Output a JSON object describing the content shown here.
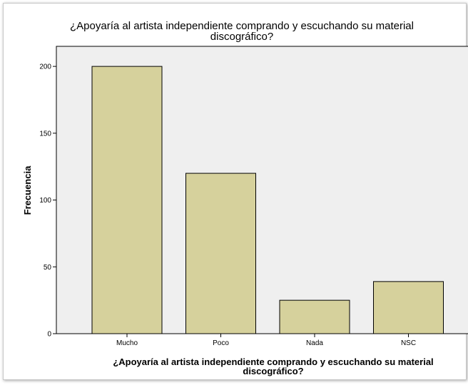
{
  "chart_data": {
    "type": "bar",
    "title": "¿Apoyaría al artista independiente comprando y escuchando su material discográfico?",
    "title_lines": [
      "¿Apoyaría al artista independiente comprando y escuchando su material",
      "discográfico?"
    ],
    "xlabel": "¿Apoyaría al artista independiente comprando y escuchando su material discográfico?",
    "xlabel_lines": [
      "¿Apoyaría al artista independiente comprando y escuchando su material",
      "discográfico?"
    ],
    "ylabel": "Frecuencia",
    "categories": [
      "Mucho",
      "Poco",
      "Nada",
      "NSC"
    ],
    "values": [
      200,
      120,
      25,
      39
    ],
    "ylim": [
      0,
      215
    ],
    "yticks": [
      0,
      50,
      100,
      150,
      200
    ],
    "grid": false,
    "colors": {
      "bar": "#d6d19c",
      "plot_bg": "#efefef",
      "outline": "#000000"
    }
  }
}
